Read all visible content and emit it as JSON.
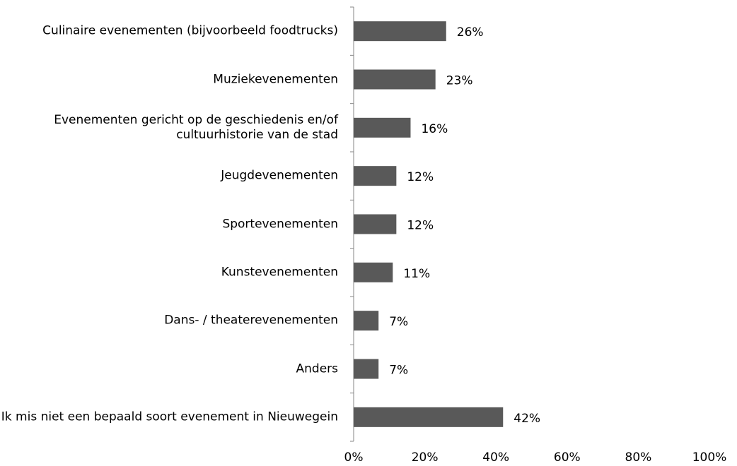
{
  "chart_data": {
    "type": "bar",
    "orientation": "horizontal",
    "categories": [
      "Culinaire evenementen (bijvoorbeeld foodtrucks)",
      "Muziekevenementen",
      "Evenementen gericht op de geschiedenis en/of cultuurhistorie van de stad",
      "Jeugdevenementen",
      "Sportevenementen",
      "Kunstevenementen",
      "Dans- / theaterevenementen",
      "Anders",
      "Ik mis niet een bepaald soort evenement in Nieuwegein"
    ],
    "values": [
      26,
      23,
      16,
      12,
      12,
      11,
      7,
      7,
      42
    ],
    "value_labels": [
      "26%",
      "23%",
      "16%",
      "12%",
      "12%",
      "11%",
      "7%",
      "7%",
      "42%"
    ],
    "color": "#595959",
    "xlim": [
      0,
      100
    ],
    "xticks": [
      {
        "value": 0,
        "label": "0%"
      },
      {
        "value": 20,
        "label": "20%"
      },
      {
        "value": 40,
        "label": "40%"
      },
      {
        "value": 60,
        "label": "60%"
      },
      {
        "value": 80,
        "label": "80%"
      },
      {
        "value": 100,
        "label": "100%"
      }
    ],
    "grid": false
  }
}
